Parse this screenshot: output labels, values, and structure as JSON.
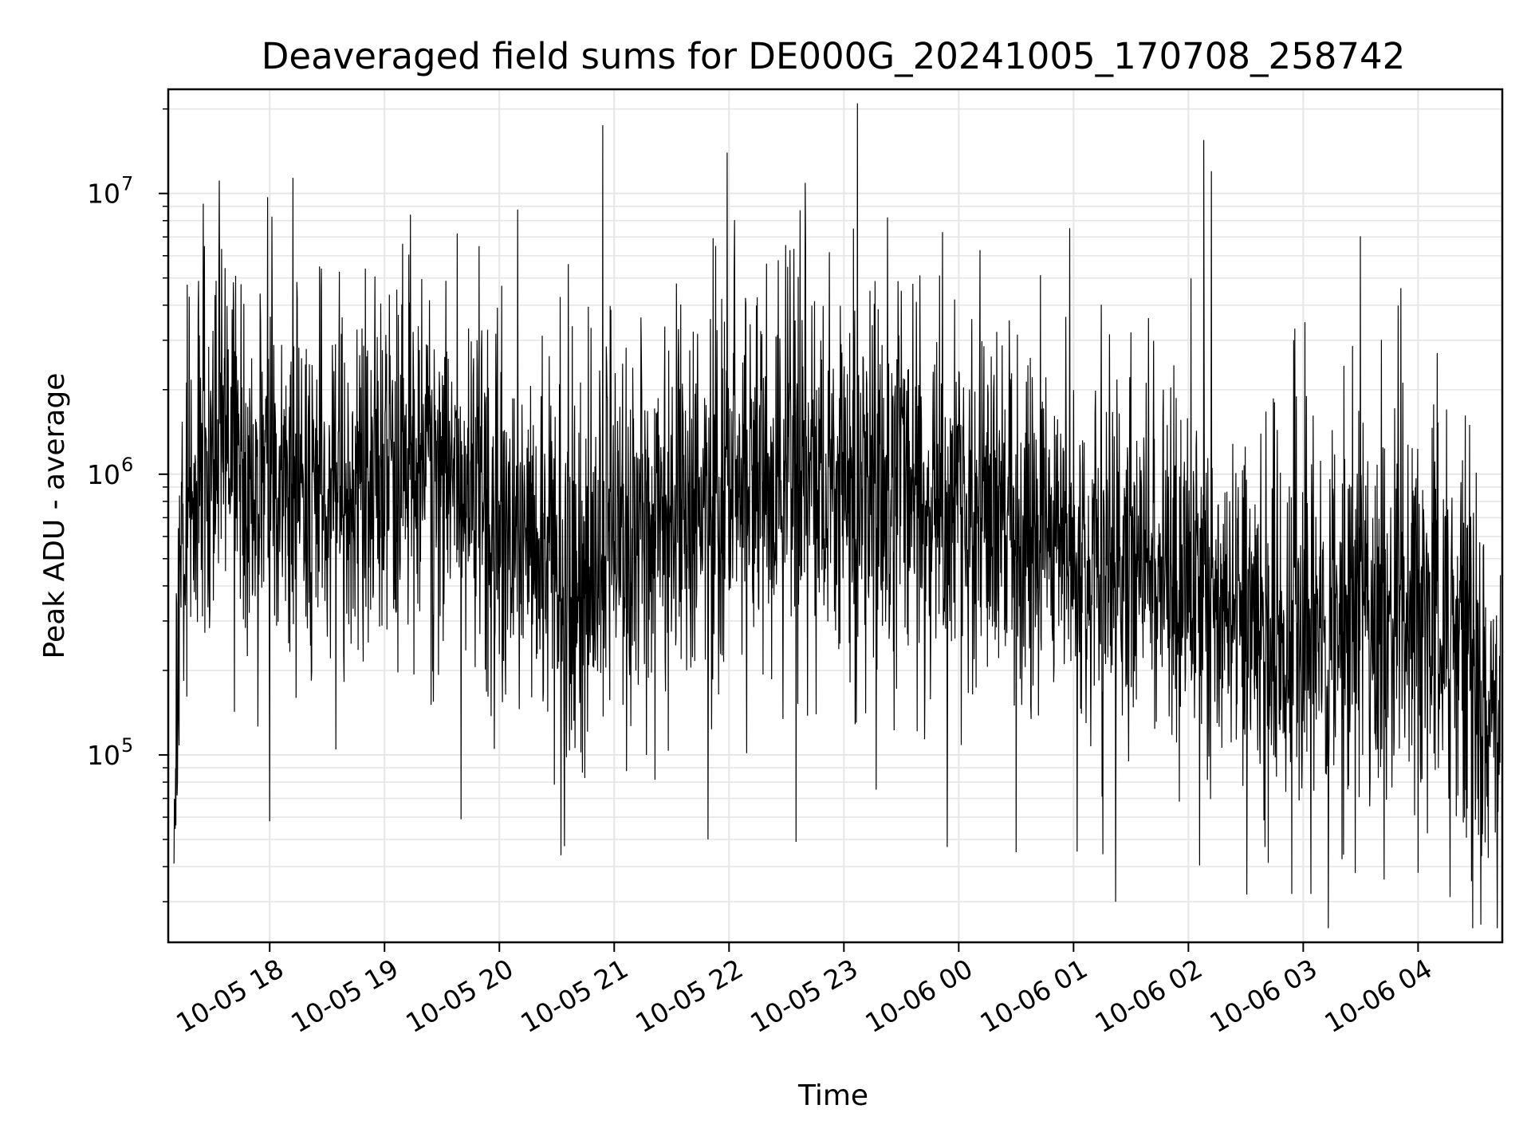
{
  "chart_data": {
    "type": "line",
    "title": "Deaveraged field sums for DE000G_20241005_170708_258742",
    "xlabel": "Time",
    "ylabel": "Peak ADU - average",
    "y_scale": "log",
    "ylim": [
      21500,
      23500000
    ],
    "xlim": [
      "2024-10-05 17:07",
      "2024-10-06 04:44"
    ],
    "grid": true,
    "line_color": "#000000",
    "grid_color": "#e6e6e6",
    "x_ticks": [
      {
        "value": "2024-10-05 18:00",
        "label": "10-05 18"
      },
      {
        "value": "2024-10-05 19:00",
        "label": "10-05 19"
      },
      {
        "value": "2024-10-05 20:00",
        "label": "10-05 20"
      },
      {
        "value": "2024-10-05 21:00",
        "label": "10-05 21"
      },
      {
        "value": "2024-10-05 22:00",
        "label": "10-05 22"
      },
      {
        "value": "2024-10-05 23:00",
        "label": "10-05 23"
      },
      {
        "value": "2024-10-06 00:00",
        "label": "10-06 00"
      },
      {
        "value": "2024-10-06 01:00",
        "label": "10-06 01"
      },
      {
        "value": "2024-10-06 02:00",
        "label": "10-06 02"
      },
      {
        "value": "2024-10-06 03:00",
        "label": "10-06 03"
      },
      {
        "value": "2024-10-06 04:00",
        "label": "10-06 04"
      }
    ],
    "y_ticks": [
      {
        "value": 100000,
        "base": "10",
        "exp": "5"
      },
      {
        "value": 1000000,
        "base": "10",
        "exp": "6"
      },
      {
        "value": 10000000,
        "base": "10",
        "exp": "7"
      }
    ],
    "series": [
      {
        "values": [
          [
            "2024-10-05 17:10",
            60000
          ],
          [
            "2024-10-05 17:14",
            500000
          ],
          [
            "2024-10-05 17:20",
            800000
          ],
          [
            "2024-10-05 17:30",
            900000
          ],
          [
            "2024-10-05 17:40",
            1100000
          ],
          [
            "2024-10-05 17:50",
            950000
          ],
          [
            "2024-10-05 18:00",
            900000
          ],
          [
            "2024-10-05 18:20",
            1000000
          ],
          [
            "2024-10-05 18:40",
            950000
          ],
          [
            "2024-10-05 19:00",
            900000
          ],
          [
            "2024-10-05 19:20",
            1000000
          ],
          [
            "2024-10-05 19:40",
            950000
          ],
          [
            "2024-10-05 20:00",
            650000
          ],
          [
            "2024-10-05 20:20",
            600000
          ],
          [
            "2024-10-05 20:40",
            420000
          ],
          [
            "2024-10-05 21:00",
            650000
          ],
          [
            "2024-10-05 21:20",
            600000
          ],
          [
            "2024-10-05 21:40",
            750000
          ],
          [
            "2024-10-05 22:00",
            900000
          ],
          [
            "2024-10-05 22:20",
            950000
          ],
          [
            "2024-10-05 22:40",
            850000
          ],
          [
            "2024-10-05 23:00",
            880000
          ],
          [
            "2024-10-05 23:20",
            850000
          ],
          [
            "2024-10-05 23:40",
            800000
          ],
          [
            "2024-10-06 00:00",
            850000
          ],
          [
            "2024-10-06 00:20",
            800000
          ],
          [
            "2024-10-06 00:40",
            650000
          ],
          [
            "2024-10-06 01:00",
            450000
          ],
          [
            "2024-10-06 01:20",
            480000
          ],
          [
            "2024-10-06 01:40",
            430000
          ],
          [
            "2024-10-06 02:00",
            420000
          ],
          [
            "2024-10-06 02:20",
            320000
          ],
          [
            "2024-10-06 02:40",
            280000
          ],
          [
            "2024-10-06 03:00",
            260000
          ],
          [
            "2024-10-06 03:20",
            300000
          ],
          [
            "2024-10-06 03:40",
            320000
          ],
          [
            "2024-10-06 04:00",
            330000
          ],
          [
            "2024-10-06 04:20",
            300000
          ],
          [
            "2024-10-06 04:34",
            160000
          ],
          [
            "2024-10-06 04:43",
            150000
          ]
        ],
        "spikes": [
          [
            "2024-10-05 20:54",
            17500000
          ],
          [
            "2024-10-05 23:05",
            7500000
          ],
          [
            "2024-10-05 19:38",
            7200000
          ],
          [
            "2024-10-05 22:40",
            6500000
          ],
          [
            "2024-10-05 21:53",
            6500000
          ],
          [
            "2024-10-05 20:36",
            5600000
          ],
          [
            "2024-10-05 18:27",
            5400000
          ],
          [
            "2024-10-05 18:50",
            5400000
          ],
          [
            "2024-10-05 23:50",
            5100000
          ],
          [
            "2024-10-06 02:08",
            15500000
          ],
          [
            "2024-10-06 02:12",
            12000000
          ],
          [
            "2024-10-06 03:51",
            4600000
          ],
          [
            "2024-10-05 17:55",
            4400000
          ],
          [
            "2024-10-06 00:30",
            4000000
          ],
          [
            "2024-10-05 23:30",
            4500000
          ],
          [
            "2024-10-06 01:30",
            3200000
          ],
          [
            "2024-10-06 02:55",
            3000000
          ],
          [
            "2024-10-06 04:10",
            2700000
          ]
        ],
        "dips": [
          [
            "2024-10-05 17:10",
            41000
          ],
          [
            "2024-10-06 01:22",
            30000
          ],
          [
            "2024-10-06 02:54",
            32000
          ],
          [
            "2024-10-06 03:04",
            32000
          ],
          [
            "2024-10-06 04:00",
            38000
          ],
          [
            "2024-10-05 21:49",
            50000
          ],
          [
            "2024-10-05 22:35",
            49000
          ],
          [
            "2024-10-05 23:54",
            47000
          ],
          [
            "2024-10-05 18:00",
            58000
          ],
          [
            "2024-10-05 19:40",
            59000
          ],
          [
            "2024-10-06 02:40",
            47000
          ],
          [
            "2024-10-06 00:30",
            45000
          ]
        ]
      }
    ]
  }
}
